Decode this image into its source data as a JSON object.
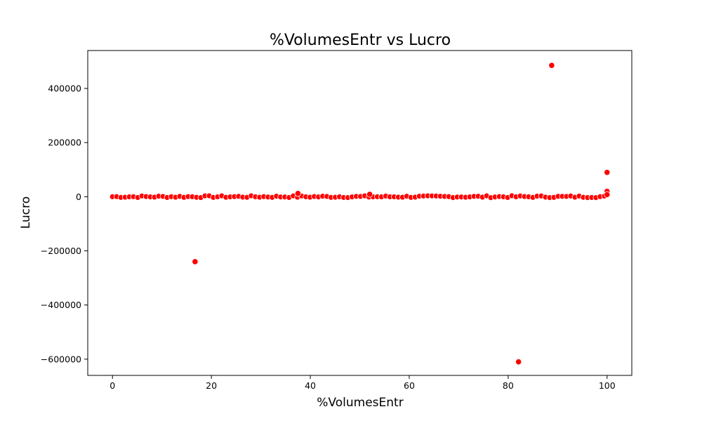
{
  "chart_data": {
    "type": "scatter",
    "title": "%VolumesEntr vs Lucro",
    "xlabel": "%VolumesEntr",
    "ylabel": "Lucro",
    "xlim": [
      -5,
      105
    ],
    "ylim": [
      -660000,
      540000
    ],
    "xticks": [
      0,
      20,
      40,
      60,
      80,
      100
    ],
    "yticks": [
      -600000,
      -400000,
      -200000,
      0,
      200000,
      400000
    ],
    "ytick_labels": [
      "−600000",
      "−400000",
      "−200000",
      "0",
      "200000",
      "400000"
    ],
    "grid": false,
    "legend": "none",
    "series": [
      {
        "color": "#ff0000",
        "outliers": [
          {
            "x": 88.8,
            "y": 485000
          },
          {
            "x": 100,
            "y": 90000
          },
          {
            "x": 100,
            "y": 20000
          },
          {
            "x": 100,
            "y": 8000
          },
          {
            "x": 37.5,
            "y": 12000
          },
          {
            "x": 52.0,
            "y": 9000
          },
          {
            "x": 16.7,
            "y": -240000
          },
          {
            "x": 82.1,
            "y": -610000
          }
        ],
        "dense_band": {
          "x_from": 0,
          "x_to": 100,
          "step": 0.85,
          "y_near": 0,
          "y_spread": 3500
        }
      }
    ]
  }
}
